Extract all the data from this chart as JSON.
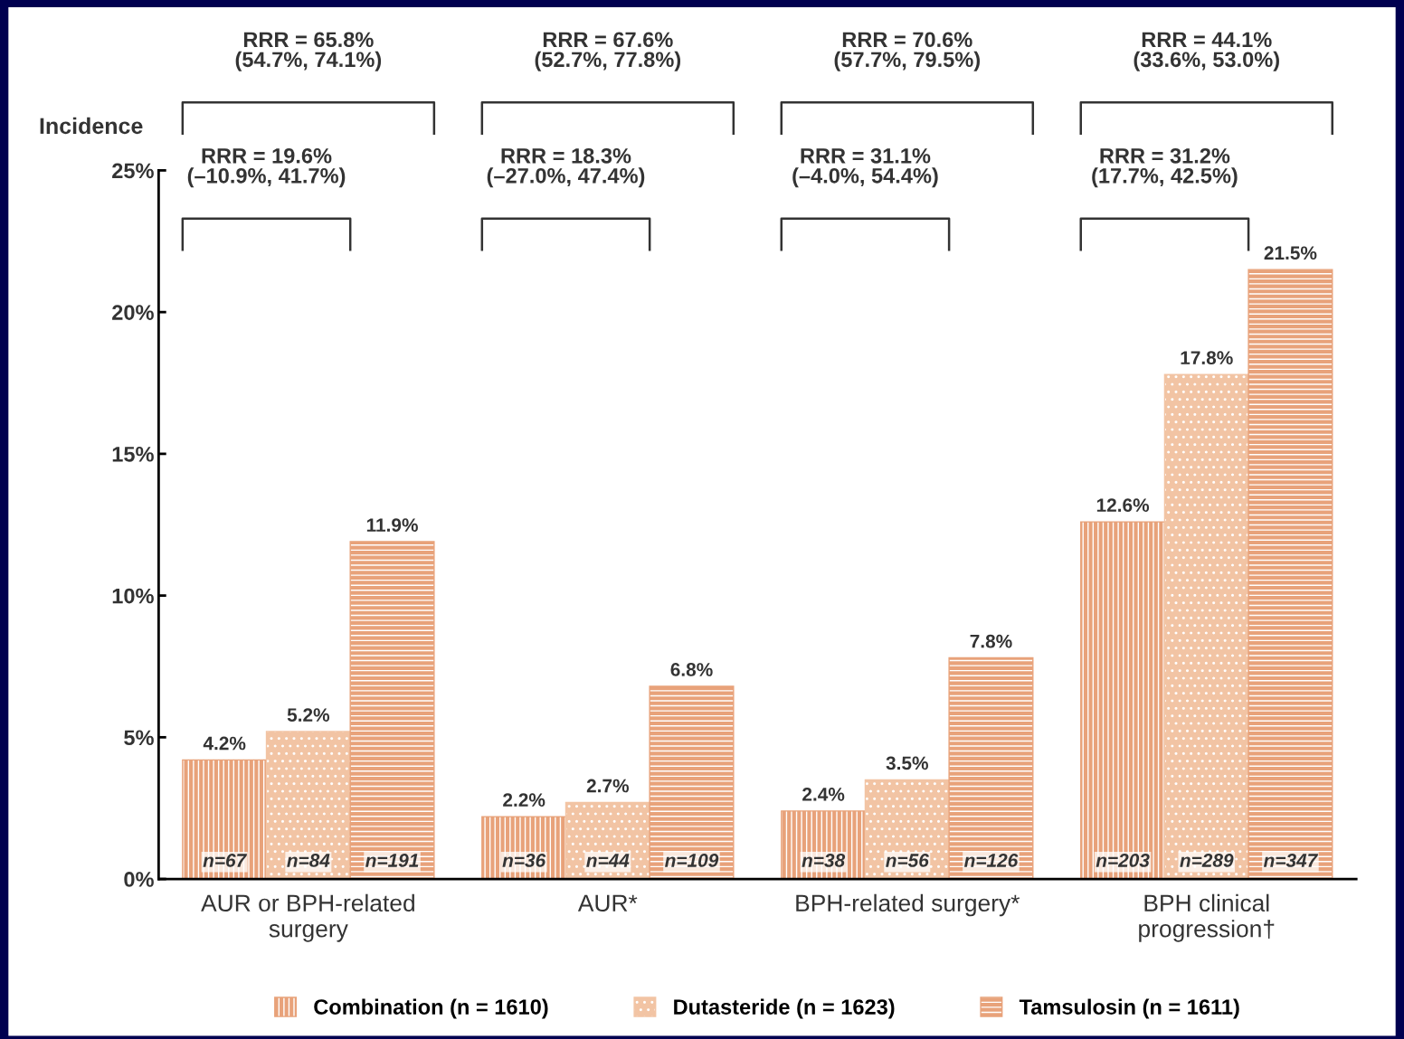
{
  "chart_data": {
    "type": "bar",
    "ylabel": "Incidence",
    "categories": [
      "AUR or BPH-related\nsurgery",
      "AUR*",
      "BPH-related surgery*",
      "BPH clinical\nprogression†"
    ],
    "series": [
      {
        "name": "Combination (n = 1610)",
        "color": "#e8a27a",
        "values": [
          4.2,
          2.2,
          2.4,
          12.6
        ],
        "value_labels": [
          "4.2%",
          "2.2%",
          "2.4%",
          "12.6%"
        ]
      },
      {
        "name": "Dutasteride (n = 1623)",
        "color": "#f2c4a4",
        "values": [
          5.2,
          2.7,
          3.5,
          17.8
        ],
        "value_labels": [
          "5.2%",
          "2.7%",
          "3.5%",
          "17.8%"
        ]
      },
      {
        "name": "Tamsulosin (n = 1611)",
        "color": "#e8a27a",
        "values": [
          11.9,
          6.8,
          7.8,
          21.5
        ],
        "value_labels": [
          "11.9%",
          "6.8%",
          "7.8%",
          "21.5%"
        ]
      }
    ],
    "ylim": [
      0,
      25
    ],
    "yticks": [
      {
        "value": 0,
        "label": "0%"
      },
      {
        "value": 5,
        "label": "5%"
      },
      {
        "value": 10,
        "label": "10%"
      },
      {
        "value": 15,
        "label": "15%"
      },
      {
        "value": 20,
        "label": "20%"
      },
      {
        "value": 25,
        "label": "25%"
      }
    ],
    "grid": false,
    "legend": "bottom",
    "annotations": [
      "RRR = 19.6%\n(–10.9%, 41.7%)",
      "RRR = 65.8%\n(54.7%, 74.1%)",
      "RRR = 18.3%\n(–27.0%, 47.4%)",
      "RRR = 67.6%\n(52.7%, 77.8%)",
      "RRR = 31.1%\n(–4.0%, 54.4%)",
      "RRR = 70.6%\n(57.7%, 79.5%)",
      "RRR = 31.2%\n(17.7%, 42.5%)",
      "RRR = 44.1%\n(33.6%, 53.0%)",
      "n=67",
      "n=84",
      "n=191",
      "n=36",
      "n=44",
      "n=109",
      "n=38",
      "n=56",
      "n=126",
      "n=203",
      "n=289",
      "n=347"
    ]
  }
}
